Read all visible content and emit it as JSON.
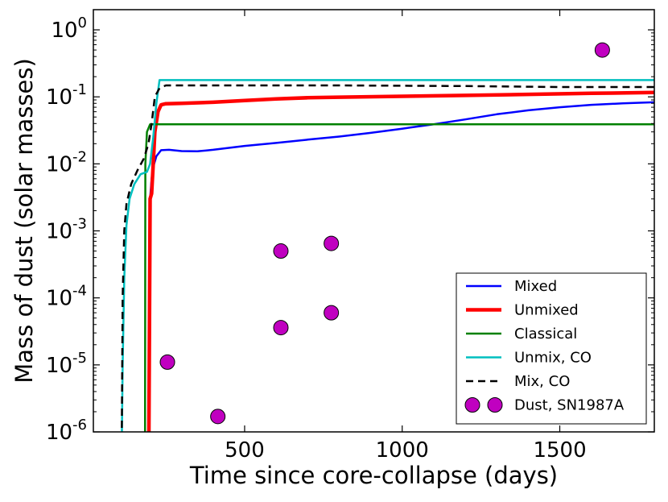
{
  "chart_data": {
    "type": "line",
    "xlabel": "Time since core-collapse (days)",
    "ylabel": "Mass of dust (solar masses)",
    "xlim": [
      20,
      1800
    ],
    "ylim": [
      1e-06,
      2
    ],
    "yscale": "log",
    "x_ticks": [
      {
        "value": 500,
        "label": "500"
      },
      {
        "value": 1000,
        "label": "1000"
      },
      {
        "value": 1500,
        "label": "1500"
      }
    ],
    "y_ticks": [
      {
        "value": 1e-06,
        "base": "10",
        "exp": "-6"
      },
      {
        "value": 1e-05,
        "base": "10",
        "exp": "-5"
      },
      {
        "value": 0.0001,
        "base": "10",
        "exp": "-4"
      },
      {
        "value": 0.001,
        "base": "10",
        "exp": "-3"
      },
      {
        "value": 0.01,
        "base": "10",
        "exp": "-2"
      },
      {
        "value": 0.1,
        "base": "10",
        "exp": "-1"
      },
      {
        "value": 1,
        "base": "10",
        "exp": "0"
      }
    ],
    "legend_position": "lower-right",
    "series": [
      {
        "name": "Mixed",
        "color": "#0000ff",
        "style": "solid",
        "width": 2.5,
        "points": [
          [
            196,
            5e-07
          ],
          [
            200,
            0.003
          ],
          [
            205,
            0.006
          ],
          [
            210,
            0.009
          ],
          [
            220,
            0.013
          ],
          [
            235,
            0.016
          ],
          [
            260,
            0.0162
          ],
          [
            300,
            0.0155
          ],
          [
            350,
            0.0154
          ],
          [
            400,
            0.0162
          ],
          [
            500,
            0.0185
          ],
          [
            600,
            0.0205
          ],
          [
            700,
            0.023
          ],
          [
            800,
            0.0255
          ],
          [
            900,
            0.029
          ],
          [
            1000,
            0.0335
          ],
          [
            1100,
            0.039
          ],
          [
            1200,
            0.046
          ],
          [
            1300,
            0.055
          ],
          [
            1400,
            0.063
          ],
          [
            1500,
            0.07
          ],
          [
            1600,
            0.076
          ],
          [
            1700,
            0.08
          ],
          [
            1800,
            0.083
          ]
        ]
      },
      {
        "name": "Unmixed",
        "color": "#ff0000",
        "style": "solid",
        "width": 4.5,
        "points": [
          [
            196,
            5e-07
          ],
          [
            200,
            0.003
          ],
          [
            205,
            0.0036
          ],
          [
            210,
            0.01
          ],
          [
            215,
            0.03
          ],
          [
            225,
            0.06
          ],
          [
            235,
            0.076
          ],
          [
            250,
            0.079
          ],
          [
            300,
            0.08
          ],
          [
            400,
            0.083
          ],
          [
            500,
            0.088
          ],
          [
            600,
            0.093
          ],
          [
            700,
            0.097
          ],
          [
            800,
            0.099
          ],
          [
            1000,
            0.102
          ],
          [
            1200,
            0.105
          ],
          [
            1400,
            0.109
          ],
          [
            1600,
            0.113
          ],
          [
            1800,
            0.116
          ]
        ]
      },
      {
        "name": "Classical",
        "color": "#008000",
        "style": "solid",
        "width": 2.5,
        "points": [
          [
            184,
            5e-07
          ],
          [
            185,
            0.01
          ],
          [
            190,
            0.03
          ],
          [
            200,
            0.039
          ],
          [
            300,
            0.039
          ],
          [
            1800,
            0.039
          ]
        ]
      },
      {
        "name": "Unmix, CO",
        "color": "#00bfbf",
        "style": "solid",
        "width": 2.5,
        "points": [
          [
            110,
            5e-07
          ],
          [
            113,
            1e-05
          ],
          [
            118,
            0.0002
          ],
          [
            125,
            0.0012
          ],
          [
            135,
            0.003
          ],
          [
            150,
            0.005
          ],
          [
            170,
            0.007
          ],
          [
            190,
            0.0076
          ],
          [
            200,
            0.01
          ],
          [
            210,
            0.025
          ],
          [
            220,
            0.08
          ],
          [
            230,
            0.178
          ],
          [
            250,
            0.178
          ],
          [
            1800,
            0.178
          ]
        ]
      },
      {
        "name": "Mix, CO",
        "color": "#000000",
        "style": "dashed",
        "width": 2.5,
        "points": [
          [
            110,
            5e-07
          ],
          [
            113,
            0.0001
          ],
          [
            118,
            0.001
          ],
          [
            125,
            0.0025
          ],
          [
            140,
            0.005
          ],
          [
            160,
            0.008
          ],
          [
            180,
            0.012
          ],
          [
            195,
            0.02
          ],
          [
            205,
            0.04
          ],
          [
            215,
            0.1
          ],
          [
            230,
            0.135
          ],
          [
            250,
            0.148
          ],
          [
            300,
            0.148
          ],
          [
            800,
            0.148
          ],
          [
            1200,
            0.145
          ],
          [
            1500,
            0.14
          ],
          [
            1800,
            0.14
          ]
        ]
      }
    ],
    "scatter": {
      "name": "Dust, SN1987A",
      "color": "#c000c0",
      "points": [
        [
          255,
          1.1e-05
        ],
        [
          415,
          1.7e-06
        ],
        [
          615,
          0.0005
        ],
        [
          615,
          3.6e-05
        ],
        [
          775,
          0.00065
        ],
        [
          775,
          6e-05
        ],
        [
          1635,
          0.5
        ]
      ]
    }
  }
}
